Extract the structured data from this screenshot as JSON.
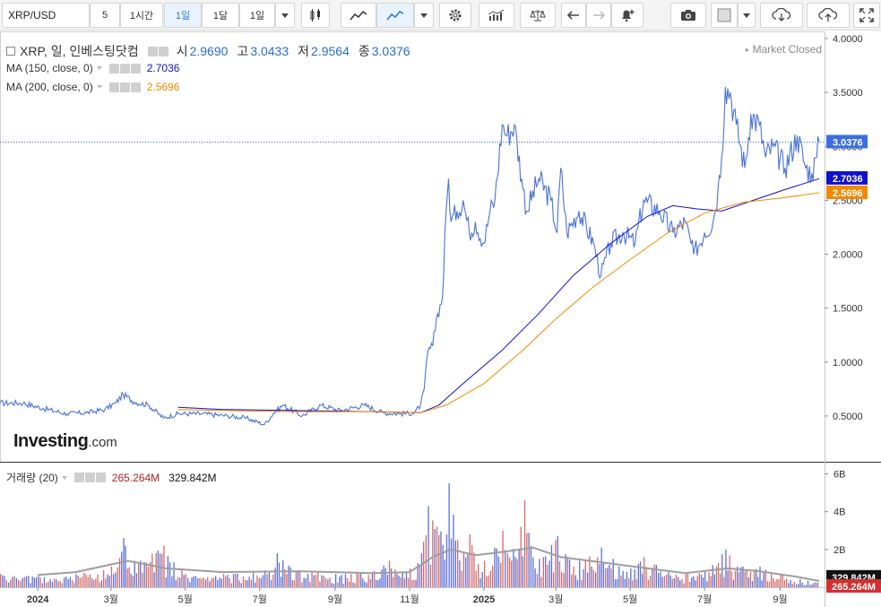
{
  "toolbar": {
    "symbol": "XRP/USD",
    "buttons": [
      "5",
      "1시간",
      "1일",
      "1달",
      "1일"
    ],
    "active_index": 2
  },
  "legend": {
    "main": {
      "name": "XRP, 일, 인베스팅닷컴",
      "o_label": "시",
      "o_value": "2.9690",
      "h_label": "고",
      "h_value": "3.0433",
      "l_label": "저",
      "l_value": "2.9564",
      "c_label": "종",
      "c_value": "3.0376"
    },
    "ma150": {
      "name": "MA (150, close, 0)",
      "value": "2.7036",
      "color": "#1111cc"
    },
    "ma200": {
      "name": "MA (200, close, 0)",
      "value": "2.5696",
      "color": "#f08a00"
    },
    "volume": {
      "name": "거래량 (20)",
      "value": "265.264M",
      "ma_value": "329.842M"
    }
  },
  "status": "Market Closed",
  "logo": {
    "brand": "Investing",
    "suffix": ".com"
  },
  "colors": {
    "price": "#4a73d6",
    "ma150": "#1111cc",
    "ma200": "#f08a00",
    "vol_up": "#5b6fd8",
    "vol_down": "#d46a6a",
    "vol_ma": "#9e9e9e",
    "price_tag": "#3b6ee0",
    "vol_tag": "#d32f2f"
  },
  "chart_data": [
    {
      "type": "line",
      "title": "XRP, 일, 인베스팅닷컴",
      "x_ticks": [
        "2024",
        "3월",
        "5월",
        "7월",
        "9월",
        "11월",
        "2025",
        "3월",
        "5월",
        "7월",
        "9월"
      ],
      "y_ticks": [
        "4.0000",
        "3.5000",
        "3.0000",
        "2.5000",
        "2.0000",
        "1.5000",
        "1.0000",
        "0.5000"
      ],
      "ylim": [
        0.2,
        4.0
      ],
      "current_price_label": "3.0376",
      "series": [
        {
          "name": "XRP",
          "points": [
            [
              "2023-12-01",
              0.62
            ],
            [
              "2023-12-20",
              0.62
            ],
            [
              "2024-01-05",
              0.57
            ],
            [
              "2024-01-25",
              0.52
            ],
            [
              "2024-02-10",
              0.53
            ],
            [
              "2024-02-25",
              0.56
            ],
            [
              "2024-03-05",
              0.62
            ],
            [
              "2024-03-11",
              0.7
            ],
            [
              "2024-03-20",
              0.63
            ],
            [
              "2024-04-01",
              0.6
            ],
            [
              "2024-04-13",
              0.48
            ],
            [
              "2024-04-25",
              0.52
            ],
            [
              "2024-05-15",
              0.52
            ],
            [
              "2024-06-05",
              0.5
            ],
            [
              "2024-06-20",
              0.48
            ],
            [
              "2024-07-05",
              0.42
            ],
            [
              "2024-07-12",
              0.52
            ],
            [
              "2024-07-20",
              0.6
            ],
            [
              "2024-08-05",
              0.5
            ],
            [
              "2024-08-20",
              0.6
            ],
            [
              "2024-09-05",
              0.55
            ],
            [
              "2024-09-25",
              0.6
            ],
            [
              "2024-10-10",
              0.53
            ],
            [
              "2024-10-25",
              0.52
            ],
            [
              "2024-11-05",
              0.53
            ],
            [
              "2024-11-10",
              0.6
            ],
            [
              "2024-11-13",
              0.75
            ],
            [
              "2024-11-16",
              1.1
            ],
            [
              "2024-11-20",
              1.15
            ],
            [
              "2024-11-23",
              1.4
            ],
            [
              "2024-11-28",
              1.6
            ],
            [
              "2024-12-01",
              2.4
            ],
            [
              "2024-12-03",
              2.7
            ],
            [
              "2024-12-05",
              2.3
            ],
            [
              "2024-12-10",
              2.4
            ],
            [
              "2024-12-15",
              2.5
            ],
            [
              "2024-12-20",
              2.2
            ],
            [
              "2024-12-25",
              2.3
            ],
            [
              "2025-01-01",
              2.1
            ],
            [
              "2025-01-06",
              2.4
            ],
            [
              "2025-01-10",
              2.5
            ],
            [
              "2025-01-16",
              3.2
            ],
            [
              "2025-01-20",
              3.1
            ],
            [
              "2025-01-26",
              3.2
            ],
            [
              "2025-02-01",
              2.7
            ],
            [
              "2025-02-05",
              2.4
            ],
            [
              "2025-02-15",
              2.7
            ],
            [
              "2025-02-25",
              2.5
            ],
            [
              "2025-03-02",
              2.2
            ],
            [
              "2025-03-05",
              2.8
            ],
            [
              "2025-03-10",
              2.2
            ],
            [
              "2025-03-20",
              2.4
            ],
            [
              "2025-04-01",
              2.1
            ],
            [
              "2025-04-07",
              1.8
            ],
            [
              "2025-04-15",
              2.1
            ],
            [
              "2025-04-25",
              2.2
            ],
            [
              "2025-05-05",
              2.1
            ],
            [
              "2025-05-12",
              2.5
            ],
            [
              "2025-05-25",
              2.4
            ],
            [
              "2025-06-05",
              2.2
            ],
            [
              "2025-06-15",
              2.3
            ],
            [
              "2025-06-22",
              2.0
            ],
            [
              "2025-07-01",
              2.2
            ],
            [
              "2025-07-08",
              2.3
            ],
            [
              "2025-07-12",
              2.6
            ],
            [
              "2025-07-15",
              2.9
            ],
            [
              "2025-07-18",
              3.55
            ],
            [
              "2025-07-22",
              3.5
            ],
            [
              "2025-07-27",
              3.2
            ],
            [
              "2025-08-03",
              2.8
            ],
            [
              "2025-08-08",
              3.3
            ],
            [
              "2025-08-15",
              3.2
            ],
            [
              "2025-08-20",
              2.9
            ],
            [
              "2025-08-26",
              3.0
            ],
            [
              "2025-09-05",
              2.8
            ],
            [
              "2025-09-15",
              3.1
            ],
            [
              "2025-09-22",
              2.8
            ],
            [
              "2025-09-27",
              2.75
            ],
            [
              "2025-10-01",
              2.9
            ],
            [
              "2025-10-03",
              3.04
            ]
          ]
        },
        {
          "name": "MA (150, close, 0)",
          "points": [
            [
              "2024-04-25",
              0.58
            ],
            [
              "2024-06-01",
              0.56
            ],
            [
              "2024-08-01",
              0.55
            ],
            [
              "2024-10-01",
              0.54
            ],
            [
              "2024-11-10",
              0.53
            ],
            [
              "2024-11-25",
              0.6
            ],
            [
              "2024-12-15",
              0.8
            ],
            [
              "2025-01-15",
              1.1
            ],
            [
              "2025-02-15",
              1.45
            ],
            [
              "2025-03-15",
              1.8
            ],
            [
              "2025-04-15",
              2.1
            ],
            [
              "2025-05-15",
              2.35
            ],
            [
              "2025-06-05",
              2.45
            ],
            [
              "2025-06-25",
              2.42
            ],
            [
              "2025-07-15",
              2.4
            ],
            [
              "2025-08-10",
              2.5
            ],
            [
              "2025-09-05",
              2.6
            ],
            [
              "2025-10-03",
              2.7
            ]
          ]
        },
        {
          "name": "MA (200, close, 0)",
          "points": [
            [
              "2024-04-25",
              0.56
            ],
            [
              "2024-06-01",
              0.55
            ],
            [
              "2024-08-01",
              0.54
            ],
            [
              "2024-10-01",
              0.54
            ],
            [
              "2024-11-10",
              0.53
            ],
            [
              "2024-12-01",
              0.6
            ],
            [
              "2025-01-01",
              0.8
            ],
            [
              "2025-02-01",
              1.1
            ],
            [
              "2025-03-01",
              1.4
            ],
            [
              "2025-04-01",
              1.7
            ],
            [
              "2025-05-01",
              1.95
            ],
            [
              "2025-06-01",
              2.2
            ],
            [
              "2025-07-01",
              2.38
            ],
            [
              "2025-08-01",
              2.48
            ],
            [
              "2025-09-01",
              2.52
            ],
            [
              "2025-10-03",
              2.57
            ]
          ]
        }
      ]
    },
    {
      "type": "bar",
      "title": "거래량 (20)",
      "y_ticks": [
        "6B",
        "4B",
        "2B"
      ],
      "ylim": [
        0,
        6.5
      ],
      "unit": "B",
      "current_volume_label": "265.264M",
      "current_volume_ma_label": "329.842M",
      "series": [
        {
          "name": "거래량",
          "points": [
            [
              "2023-12-01",
              0.7
            ],
            [
              "2024-01-01",
              0.6
            ],
            [
              "2024-02-01",
              0.7
            ],
            [
              "2024-03-01",
              1.1
            ],
            [
              "2024-03-11",
              2.6
            ],
            [
              "2024-03-20",
              1.4
            ],
            [
              "2024-04-13",
              2.2
            ],
            [
              "2024-05-01",
              0.7
            ],
            [
              "2024-06-01",
              0.7
            ],
            [
              "2024-07-05",
              0.9
            ],
            [
              "2024-07-15",
              1.8
            ],
            [
              "2024-08-01",
              0.9
            ],
            [
              "2024-09-01",
              0.7
            ],
            [
              "2024-10-01",
              0.8
            ],
            [
              "2024-10-15",
              1.4
            ],
            [
              "2024-11-01",
              1.0
            ],
            [
              "2024-11-12",
              2.4
            ],
            [
              "2024-11-16",
              4.3
            ],
            [
              "2024-11-23",
              3.2
            ],
            [
              "2024-12-01",
              2.8
            ],
            [
              "2024-12-03",
              5.5
            ],
            [
              "2024-12-10",
              2.5
            ],
            [
              "2024-12-20",
              2.8
            ],
            [
              "2025-01-01",
              1.4
            ],
            [
              "2025-01-16",
              3.0
            ],
            [
              "2025-01-20",
              1.8
            ],
            [
              "2025-02-03",
              4.6
            ],
            [
              "2025-02-15",
              1.5
            ],
            [
              "2025-03-02",
              2.7
            ],
            [
              "2025-03-20",
              1.4
            ],
            [
              "2025-04-07",
              2.1
            ],
            [
              "2025-05-01",
              1.0
            ],
            [
              "2025-05-12",
              1.6
            ],
            [
              "2025-06-01",
              0.8
            ],
            [
              "2025-07-01",
              0.9
            ],
            [
              "2025-07-18",
              2.0
            ],
            [
              "2025-08-01",
              1.1
            ],
            [
              "2025-08-15",
              1.1
            ],
            [
              "2025-09-01",
              0.7
            ],
            [
              "2025-10-03",
              0.27
            ]
          ]
        },
        {
          "name": "거래량 MA",
          "points": [
            [
              "2024-01-01",
              0.65
            ],
            [
              "2024-02-01",
              0.8
            ],
            [
              "2024-03-15",
              1.4
            ],
            [
              "2024-04-15",
              1.0
            ],
            [
              "2024-06-01",
              0.8
            ],
            [
              "2024-08-01",
              0.85
            ],
            [
              "2024-10-01",
              0.75
            ],
            [
              "2024-11-01",
              0.8
            ],
            [
              "2024-11-20",
              1.6
            ],
            [
              "2024-12-05",
              2.0
            ],
            [
              "2024-12-25",
              1.7
            ],
            [
              "2025-01-20",
              1.9
            ],
            [
              "2025-02-10",
              2.1
            ],
            [
              "2025-03-05",
              1.6
            ],
            [
              "2025-04-10",
              1.3
            ],
            [
              "2025-05-15",
              1.0
            ],
            [
              "2025-06-15",
              0.75
            ],
            [
              "2025-07-20",
              1.0
            ],
            [
              "2025-08-15",
              0.85
            ],
            [
              "2025-09-15",
              0.55
            ],
            [
              "2025-10-03",
              0.33
            ]
          ]
        }
      ]
    }
  ]
}
